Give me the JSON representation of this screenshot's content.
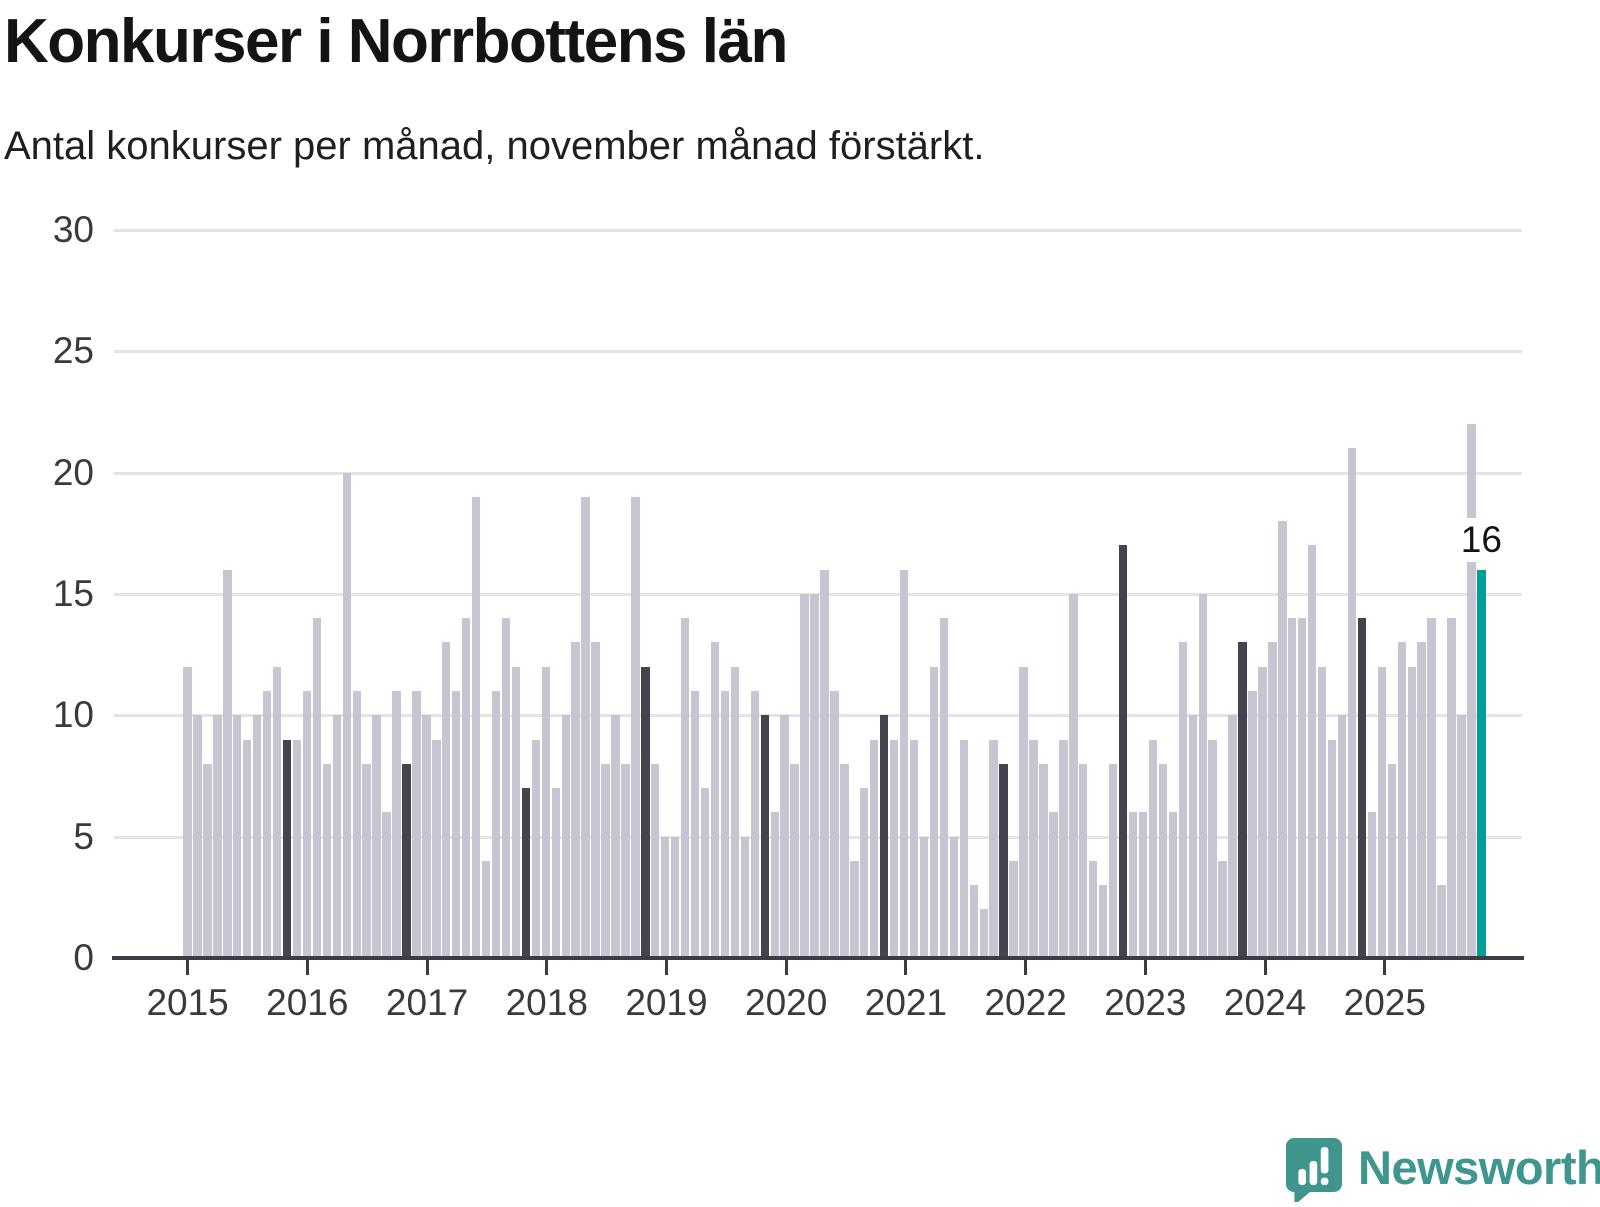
{
  "header": {
    "title": "Konkurser i Norrbottens län",
    "subtitle": "Antal konkurser per månad, november månad förstärkt."
  },
  "chart_data": {
    "type": "bar",
    "title": "Konkurser i Norrbottens län",
    "subtitle": "Antal konkurser per månad, november månad förstärkt.",
    "ylabel": "",
    "xlabel": "",
    "ylim": [
      0,
      30
    ],
    "y_ticks": [
      0,
      5,
      10,
      15,
      20,
      25,
      30
    ],
    "grid": "horizontal",
    "legend": "none",
    "x_tick_years": [
      "2015",
      "2016",
      "2017",
      "2018",
      "2019",
      "2020",
      "2021",
      "2022",
      "2023",
      "2024",
      "2025"
    ],
    "november_index_in_year": 10,
    "series": [
      {
        "year": "2015",
        "values": [
          12,
          10,
          8,
          10,
          16,
          10,
          9,
          10,
          11,
          12,
          9,
          9
        ]
      },
      {
        "year": "2016",
        "values": [
          11,
          14,
          8,
          10,
          20,
          11,
          8,
          10,
          6,
          11,
          8,
          11
        ]
      },
      {
        "year": "2017",
        "values": [
          10,
          9,
          13,
          11,
          14,
          19,
          4,
          11,
          14,
          12,
          7,
          9
        ]
      },
      {
        "year": "2018",
        "values": [
          12,
          7,
          10,
          13,
          19,
          13,
          8,
          10,
          8,
          19,
          12,
          8
        ]
      },
      {
        "year": "2019",
        "values": [
          5,
          5,
          14,
          11,
          7,
          13,
          11,
          12,
          5,
          11,
          10,
          6
        ]
      },
      {
        "year": "2020",
        "values": [
          10,
          8,
          15,
          15,
          16,
          11,
          8,
          4,
          7,
          9,
          10,
          9
        ]
      },
      {
        "year": "2021",
        "values": [
          16,
          9,
          5,
          12,
          14,
          5,
          9,
          3,
          2,
          9,
          8,
          4
        ]
      },
      {
        "year": "2022",
        "values": [
          12,
          9,
          8,
          6,
          9,
          15,
          8,
          4,
          3,
          8,
          17,
          6
        ]
      },
      {
        "year": "2023",
        "values": [
          6,
          9,
          8,
          6,
          13,
          10,
          15,
          9,
          4,
          10,
          13,
          11
        ]
      },
      {
        "year": "2024",
        "values": [
          12,
          13,
          18,
          14,
          14,
          17,
          12,
          9,
          10,
          21,
          14,
          6
        ]
      },
      {
        "year": "2025",
        "values": [
          12,
          8,
          13,
          12,
          13,
          14,
          3,
          14,
          10,
          22,
          16
        ]
      }
    ],
    "highlighted_bar": {
      "year": "2025",
      "month": "november",
      "value": 16,
      "label": "16"
    },
    "colors": {
      "default_bar": "#c7c5d2",
      "november_bar": "#45434e",
      "highlight_bar": "#009e96",
      "axis": "#3d3c45",
      "gridline": "#e4e4e6"
    }
  },
  "annotation": {
    "text": "16"
  },
  "footer": {
    "brand": "Newsworthy",
    "brand_color": "#3f968e"
  }
}
